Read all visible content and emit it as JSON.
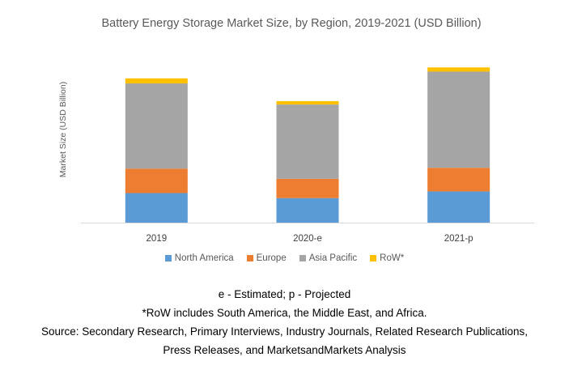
{
  "chart_data": {
    "type": "bar",
    "stacked": true,
    "title": "Battery Energy Storage Market Size, by Region, 2019-2021 (USD Billion)",
    "xlabel": "",
    "ylabel": "Market Size (USD Billion)",
    "categories": [
      "2019",
      "2020-e",
      "2021-p"
    ],
    "series": [
      {
        "name": "North America",
        "color": "#5B9BD5",
        "values": [
          35,
          29,
          37
        ]
      },
      {
        "name": "Europe",
        "color": "#ED7D31",
        "values": [
          29,
          23,
          28
        ]
      },
      {
        "name": "Asia Pacific",
        "color": "#A5A5A5",
        "values": [
          101,
          88,
          114
        ]
      },
      {
        "name": "RoW*",
        "color": "#FFC000",
        "values": [
          6,
          4,
          5
        ]
      }
    ],
    "ylim": [
      0,
      190
    ],
    "y_ticks_shown": false,
    "grid": false,
    "legend_position": "bottom"
  },
  "notes": {
    "line1": "e - Estimated; p - Projected",
    "line2": "*RoW includes South America, the Middle East, and Africa.",
    "line3": "Source: Secondary Research, Primary Interviews, Industry Journals, Related Research Publications,",
    "line4": "Press Releases, and MarketsandMarkets Analysis"
  }
}
